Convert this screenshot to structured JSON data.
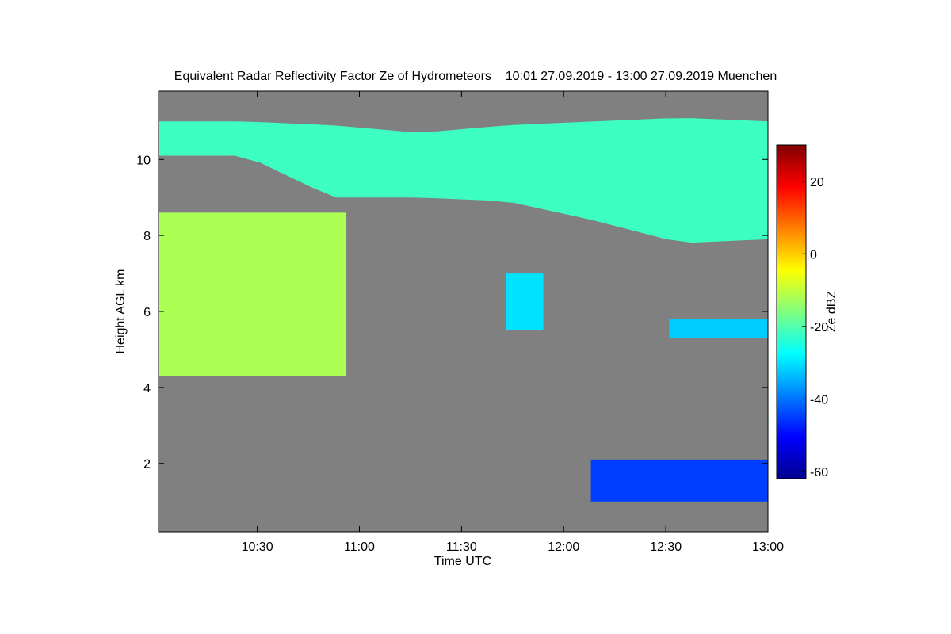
{
  "chart_data": {
    "type": "heatmap",
    "title": "Equivalent Radar Reflectivity Factor Ze of Hydrometeors",
    "time_range_label": "10:01 27.09.2019 - 13:00 27.09.2019 Muenchen",
    "xlabel": "Time UTC",
    "ylabel": "Height AGL km",
    "xlim": [
      "10:01",
      "13:00"
    ],
    "ylim": [
      0.2,
      11.8
    ],
    "x_ticks": [
      "10:30",
      "11:00",
      "11:30",
      "12:00",
      "12:30",
      "13:00"
    ],
    "y_ticks": [
      2,
      4,
      6,
      8,
      10
    ],
    "background_color": "#808080",
    "colorbar": {
      "label": "Ze dBZ",
      "range": [
        -62,
        30
      ],
      "ticks": [
        -60,
        -40,
        -20,
        0,
        20
      ],
      "colormap": "jet"
    },
    "features": [
      {
        "name": "upper cirrus band",
        "time_start": "10:01",
        "time_end": "13:00",
        "height_bottom_km": [
          10.1,
          10.1,
          9.0,
          9.0,
          8.9,
          8.4,
          7.8,
          7.9
        ],
        "height_top_km": [
          11.0,
          11.0,
          10.9,
          10.7,
          10.9,
          11.0,
          11.1,
          11.0
        ],
        "ze_dbz": -22
      },
      {
        "name": "mid-level cloud",
        "time_start": "10:01",
        "time_end": "10:56",
        "height_bottom_km": 4.3,
        "height_top_km": 8.6,
        "ze_dbz": -12
      },
      {
        "name": "small cloud near 11:45",
        "time_start": "11:43",
        "time_end": "11:54",
        "height_bottom_km": 5.5,
        "height_top_km": 7.0,
        "ze_dbz": -30
      },
      {
        "name": "small cloud near 12:40",
        "time_start": "12:31",
        "time_end": "13:00",
        "height_bottom_km": 5.3,
        "height_top_km": 5.8,
        "ze_dbz": -32
      },
      {
        "name": "low-level clutter",
        "time_start": "12:08",
        "time_end": "13:00",
        "height_bottom_km": 1.0,
        "height_top_km": 2.1,
        "ze_dbz": -45
      }
    ]
  }
}
